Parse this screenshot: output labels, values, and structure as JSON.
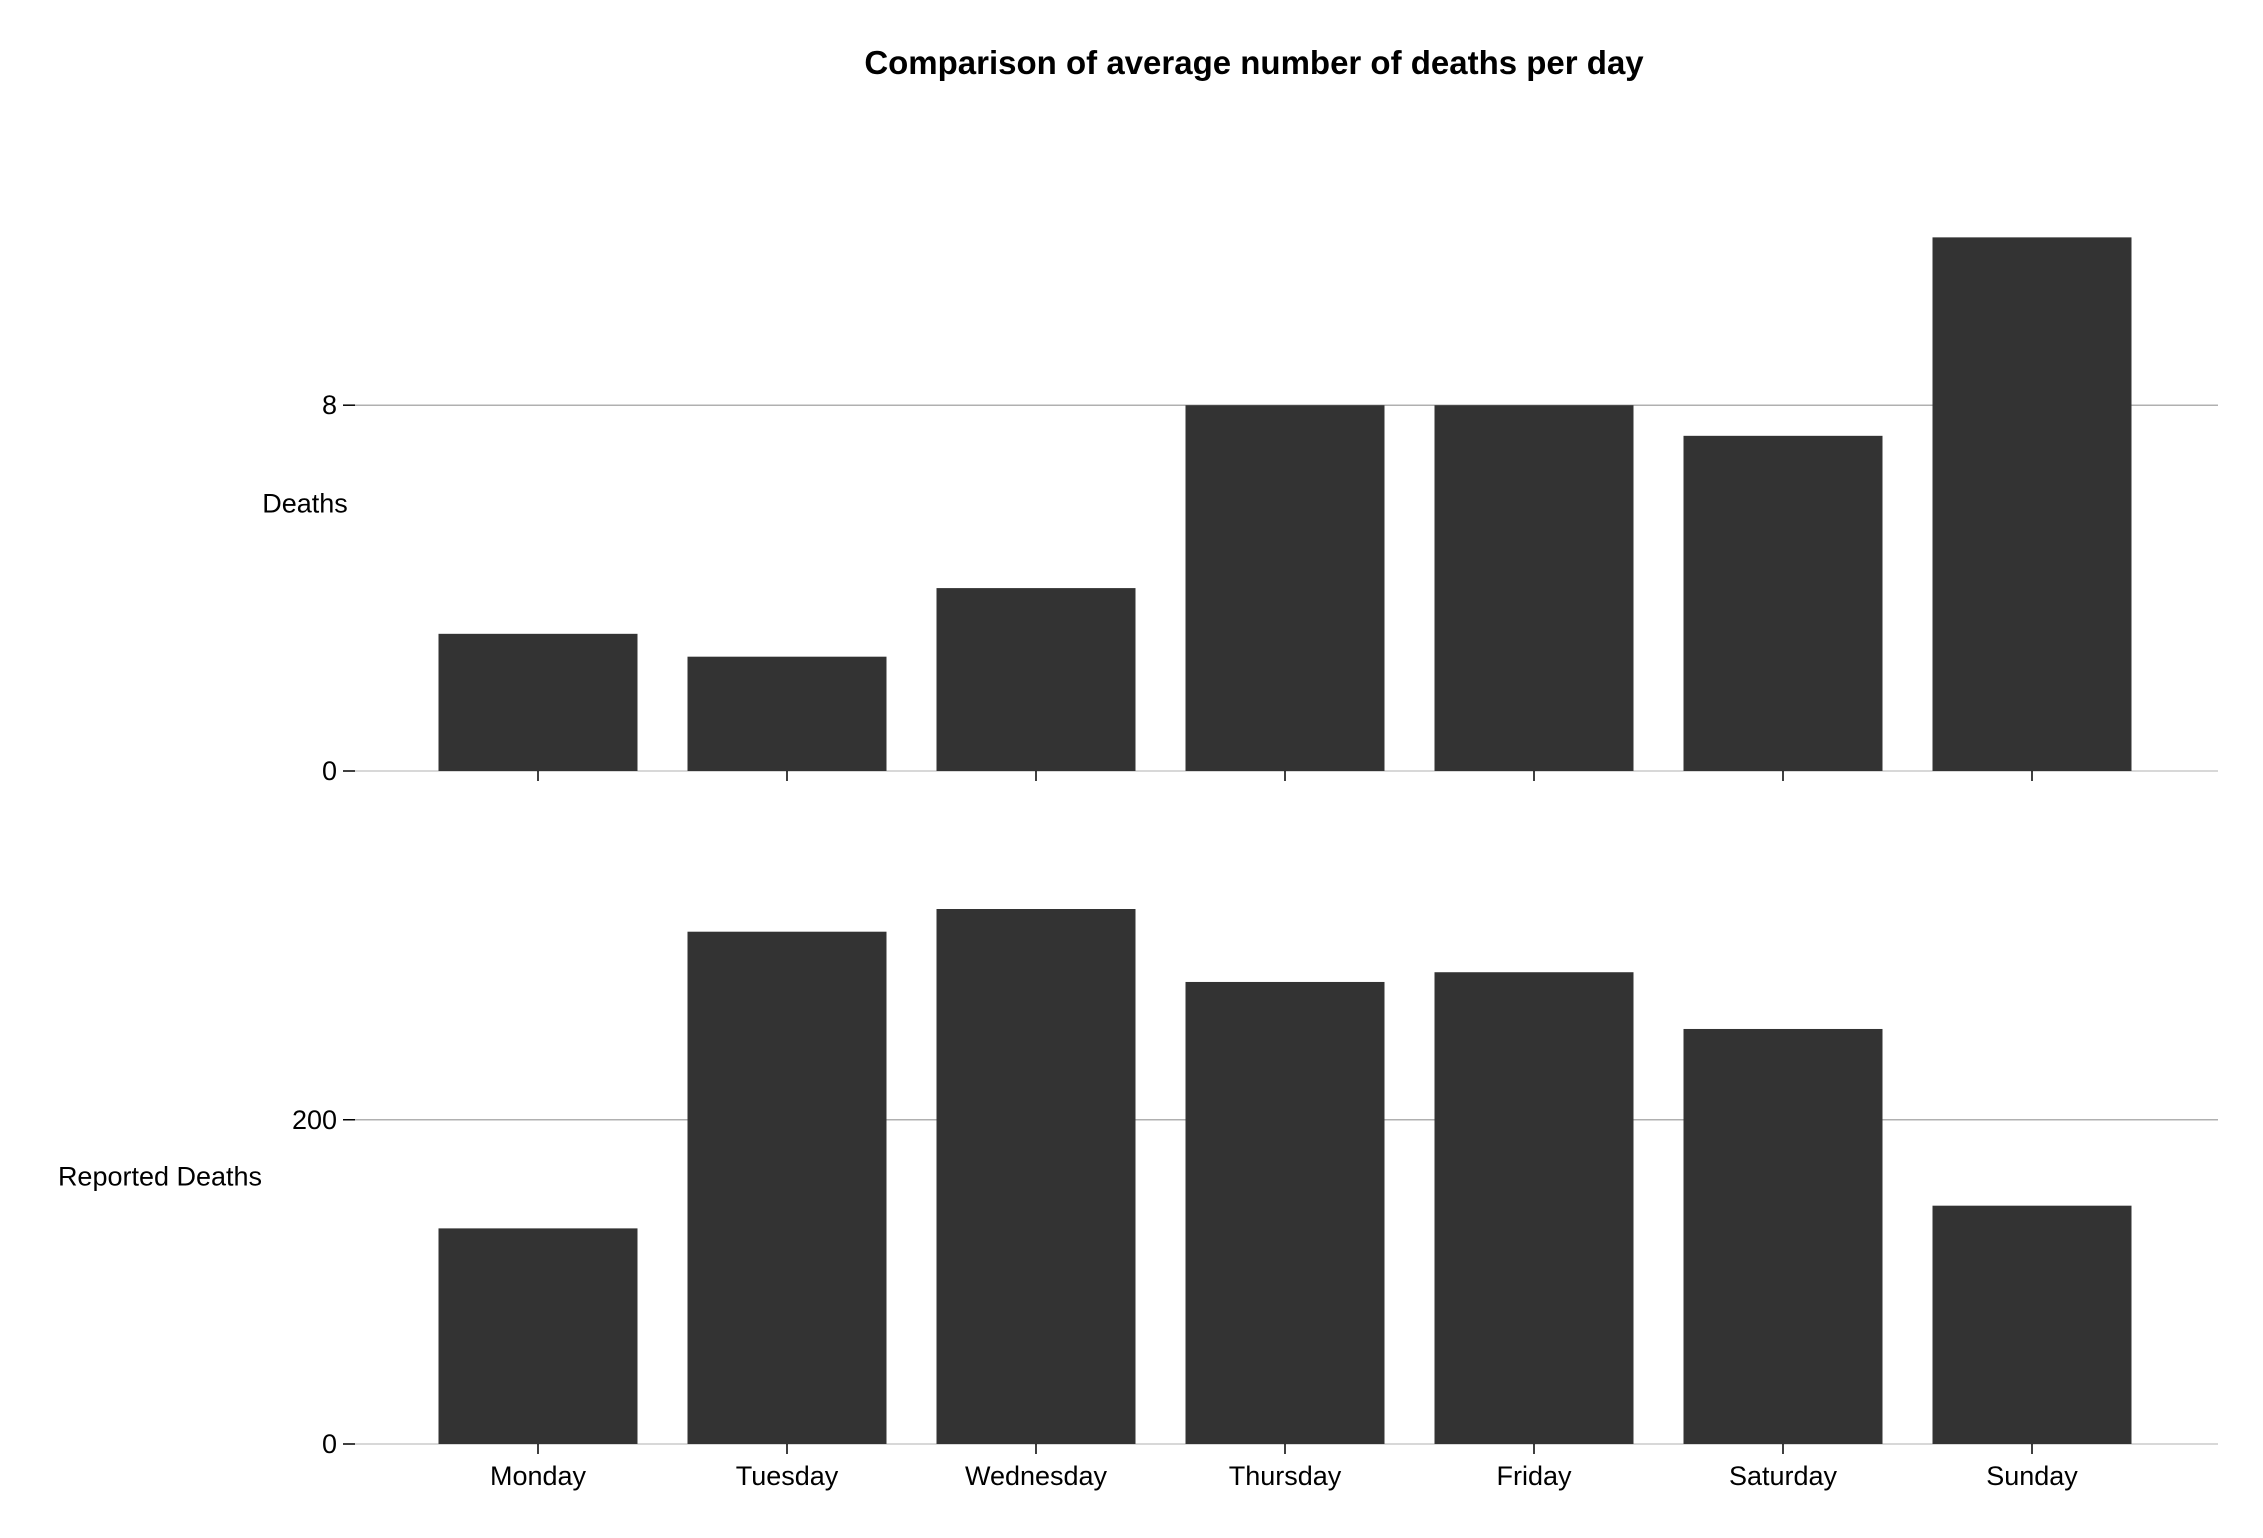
{
  "chart_data": {
    "type": "bar",
    "title": "Comparison of average number of deaths per day",
    "categories": [
      "Monday",
      "Tuesday",
      "Wednesday",
      "Thursday",
      "Friday",
      "Saturday",
      "Sunday"
    ],
    "bar_color": "#333333",
    "grid": true,
    "grid_color": "#b0b0b0",
    "panels": [
      {
        "ylabel": "Deaths",
        "ylim": [
          0,
          11.7
        ],
        "yticks": [
          0,
          8
        ],
        "show_x_tick_labels": false,
        "values": [
          3.0,
          2.5,
          4.0,
          8.0,
          8.0,
          7.33,
          11.67
        ]
      },
      {
        "ylabel": "Reported Deaths",
        "ylim": [
          0,
          330
        ],
        "yticks": [
          0,
          200
        ],
        "show_x_tick_labels": true,
        "values": [
          133,
          316,
          330,
          285,
          291,
          256,
          147
        ]
      }
    ]
  }
}
